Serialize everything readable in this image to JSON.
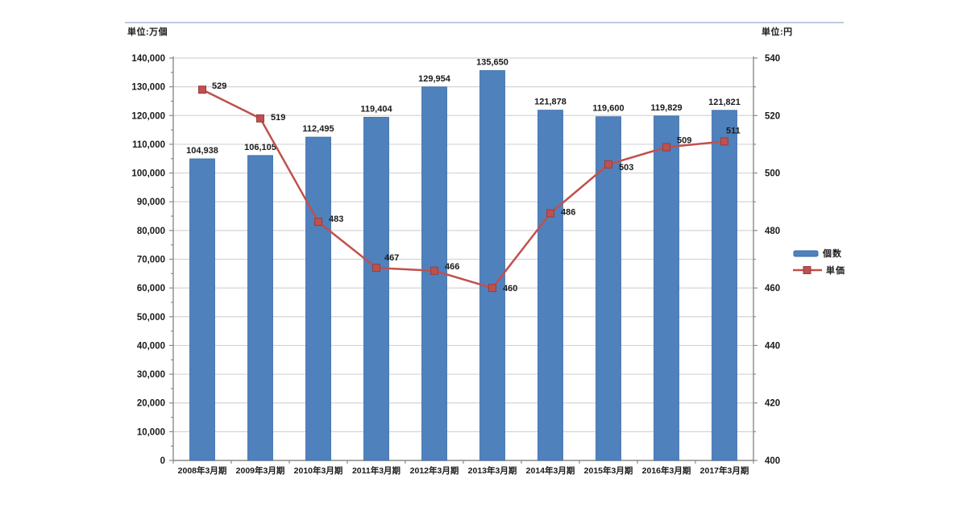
{
  "units": {
    "left": "単位:万個",
    "right": "単位:円"
  },
  "colors": {
    "bar": "#4f81bd",
    "bar_border": "#3a6ba5",
    "line": "#c0504d",
    "marker_border": "#993e3b",
    "grid": "#d4d4d4",
    "axis": "#8a8a8a",
    "text": "#1a1a1a",
    "top_rule": "#b8cce4",
    "background": "#ffffff"
  },
  "legend": [
    {
      "label": "個数",
      "type": "bar",
      "color": "#4f81bd"
    },
    {
      "label": "単価",
      "type": "line",
      "color": "#c0504d"
    }
  ],
  "chart_data": {
    "type": "bar",
    "subtype": "combo-bar-line",
    "categories": [
      "2008年3月期",
      "2009年3月期",
      "2010年3月期",
      "2011年3月期",
      "2012年3月期",
      "2013年3月期",
      "2014年3月期",
      "2015年3月期",
      "2016年3月期",
      "2017年3月期"
    ],
    "series": [
      {
        "name": "個数",
        "type": "bar",
        "axis": "left",
        "color": "#4f81bd",
        "values": [
          104938,
          106105,
          112495,
          119404,
          129954,
          135650,
          121878,
          119600,
          119829,
          121821
        ],
        "labels": [
          "104,938",
          "106,105",
          "112,495",
          "119,404",
          "129,954",
          "135,650",
          "121,878",
          "119,600",
          "119,829",
          "121,821"
        ]
      },
      {
        "name": "単価",
        "type": "line",
        "axis": "right",
        "color": "#c0504d",
        "values": [
          529,
          519,
          483,
          467,
          466,
          460,
          486,
          503,
          509,
          511
        ],
        "labels": [
          "529",
          "519",
          "483",
          "467",
          "466",
          "460",
          "486",
          "503",
          "509",
          "511"
        ],
        "label_offsets": [
          [
            12,
            -5
          ],
          [
            13,
            -2
          ],
          [
            13,
            -4
          ],
          [
            10,
            -13
          ],
          [
            13,
            -6
          ],
          [
            13,
            0
          ],
          [
            13,
            -2
          ],
          [
            13,
            3
          ],
          [
            13,
            -9
          ],
          [
            2,
            -14
          ]
        ]
      }
    ],
    "left_axis": {
      "title": "単位:万個",
      "min": 0,
      "max": 140000,
      "step": 10000,
      "minor_step": 5000,
      "tick_labels": [
        "0",
        "10,000",
        "20,000",
        "30,000",
        "40,000",
        "50,000",
        "60,000",
        "70,000",
        "80,000",
        "90,000",
        "100,000",
        "110,000",
        "120,000",
        "130,000",
        "140,000"
      ]
    },
    "right_axis": {
      "title": "単位:円",
      "min": 400,
      "max": 540,
      "step": 20,
      "minor_step": 10,
      "tick_labels": [
        "400",
        "420",
        "440",
        "460",
        "480",
        "500",
        "520",
        "540"
      ]
    },
    "grid": true,
    "legend_position": "right"
  }
}
